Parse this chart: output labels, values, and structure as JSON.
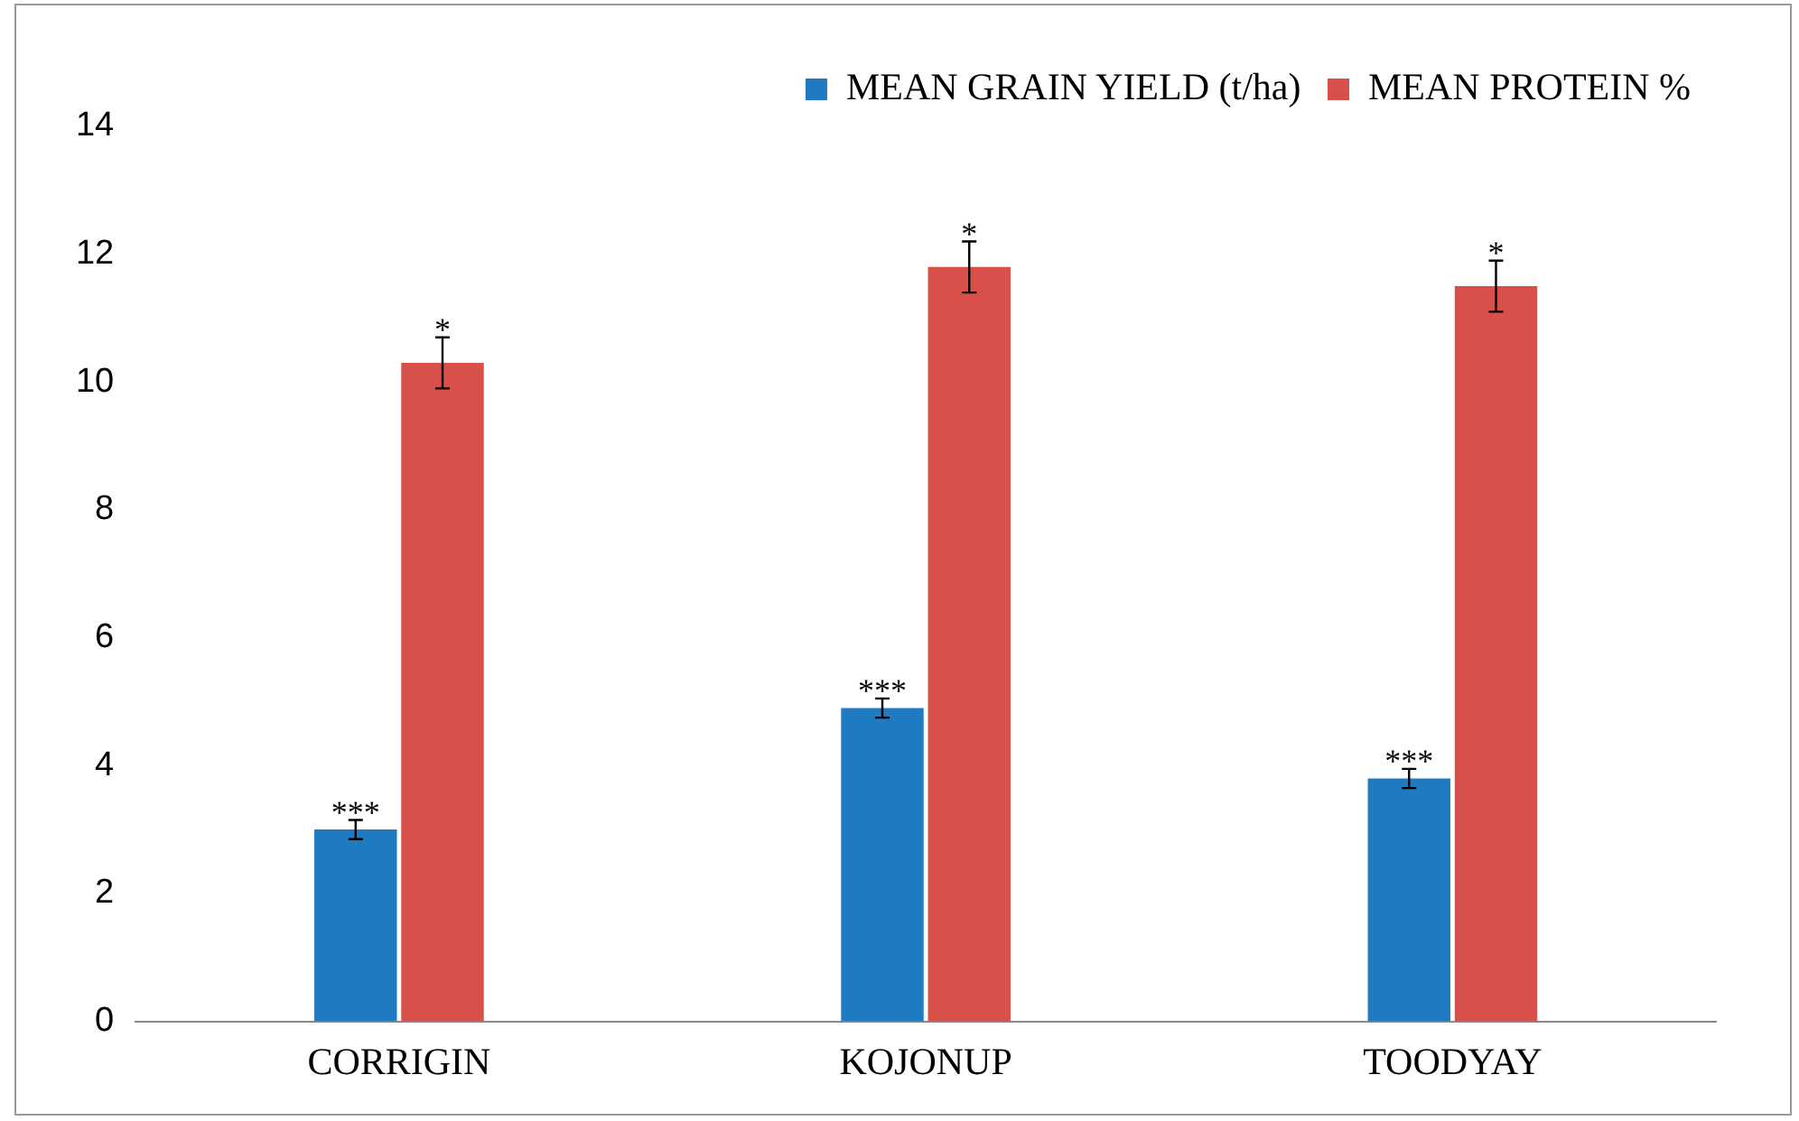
{
  "chart_data": {
    "type": "bar",
    "categories": [
      "CORRIGIN",
      "KOJONUP",
      "TOODYAY"
    ],
    "series": [
      {
        "name": "MEAN GRAIN YIELD (t/ha)",
        "color": "#1f7bc1",
        "values": [
          3.0,
          4.9,
          3.8
        ],
        "errors": [
          0.15,
          0.15,
          0.15
        ],
        "value_labels": [
          "***",
          "***",
          "***"
        ]
      },
      {
        "name": "MEAN PROTEIN %",
        "color": "#d94f4a",
        "values": [
          10.3,
          11.8,
          11.5
        ],
        "errors": [
          0.4,
          0.4,
          0.4
        ],
        "value_labels": [
          "*",
          "*",
          "*"
        ]
      }
    ],
    "ylim": [
      0,
      14
    ],
    "yticks": [
      0,
      2,
      4,
      6,
      8,
      10,
      12,
      14
    ],
    "grid": false,
    "legend": "top right"
  }
}
